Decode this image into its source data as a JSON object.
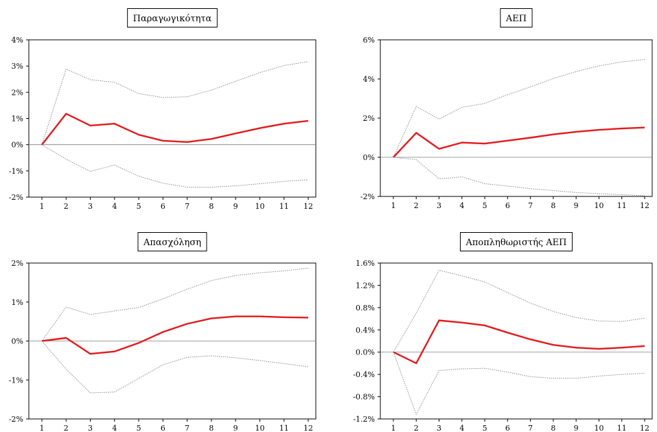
{
  "chart_data": [
    {
      "type": "line",
      "title": "Παραγωγικότητα",
      "x": [
        1,
        2,
        3,
        4,
        5,
        6,
        7,
        8,
        9,
        10,
        11,
        12
      ],
      "y_ticks": [
        "4%",
        "3%",
        "2%",
        "1%",
        "0%",
        "-1%",
        "-2%"
      ],
      "ylim": [
        -2,
        4
      ],
      "series": [
        {
          "role": "upper",
          "style": "dotted",
          "color": "#8c8c8c",
          "values": [
            0.0,
            2.88,
            2.48,
            2.38,
            1.95,
            1.8,
            1.83,
            2.08,
            2.42,
            2.75,
            3.02,
            3.17
          ]
        },
        {
          "role": "estimate",
          "style": "solid",
          "color": "#e31a1c",
          "values": [
            0.0,
            1.18,
            0.73,
            0.8,
            0.38,
            0.15,
            0.1,
            0.22,
            0.43,
            0.63,
            0.8,
            0.91
          ]
        },
        {
          "role": "lower",
          "style": "dotted",
          "color": "#8c8c8c",
          "values": [
            0.0,
            -0.55,
            -1.02,
            -0.78,
            -1.2,
            -1.47,
            -1.62,
            -1.62,
            -1.57,
            -1.49,
            -1.4,
            -1.34
          ]
        }
      ]
    },
    {
      "type": "line",
      "title": "ΑΕΠ",
      "x": [
        1,
        2,
        3,
        4,
        5,
        6,
        7,
        8,
        9,
        10,
        11,
        12
      ],
      "y_ticks": [
        "6%",
        "4%",
        "2%",
        "0%",
        "-2%"
      ],
      "ylim": [
        -2,
        6
      ],
      "series": [
        {
          "role": "upper",
          "style": "dotted",
          "color": "#8c8c8c",
          "values": [
            0.0,
            2.6,
            1.95,
            2.55,
            2.75,
            3.2,
            3.6,
            4.02,
            4.38,
            4.67,
            4.87,
            5.0
          ]
        },
        {
          "role": "estimate",
          "style": "solid",
          "color": "#e31a1c",
          "values": [
            0.0,
            1.25,
            0.43,
            0.75,
            0.7,
            0.85,
            1.0,
            1.17,
            1.3,
            1.4,
            1.47,
            1.52
          ]
        },
        {
          "role": "lower",
          "style": "dotted",
          "color": "#8c8c8c",
          "values": [
            0.0,
            -0.12,
            -1.1,
            -1.0,
            -1.35,
            -1.47,
            -1.6,
            -1.7,
            -1.8,
            -1.86,
            -1.91,
            -1.96
          ]
        }
      ]
    },
    {
      "type": "line",
      "title": "Απασχόληση",
      "x": [
        1,
        2,
        3,
        4,
        5,
        6,
        7,
        8,
        9,
        10,
        11,
        12
      ],
      "y_ticks": [
        "2%",
        "1%",
        "0%",
        "-1%",
        "-2%"
      ],
      "ylim": [
        -2,
        2
      ],
      "series": [
        {
          "role": "upper",
          "style": "dotted",
          "color": "#8c8c8c",
          "values": [
            0.0,
            0.87,
            0.68,
            0.77,
            0.86,
            1.08,
            1.33,
            1.55,
            1.68,
            1.75,
            1.8,
            1.87
          ]
        },
        {
          "role": "estimate",
          "style": "solid",
          "color": "#e31a1c",
          "values": [
            0.0,
            0.08,
            -0.33,
            -0.27,
            -0.05,
            0.23,
            0.44,
            0.58,
            0.63,
            0.63,
            0.61,
            0.6
          ]
        },
        {
          "role": "lower",
          "style": "dotted",
          "color": "#8c8c8c",
          "values": [
            0.0,
            -0.72,
            -1.33,
            -1.31,
            -0.96,
            -0.61,
            -0.42,
            -0.38,
            -0.43,
            -0.5,
            -0.58,
            -0.66
          ]
        }
      ]
    },
    {
      "type": "line",
      "title": "Αποπληθωριστής ΑΕΠ",
      "x": [
        1,
        2,
        3,
        4,
        5,
        6,
        7,
        8,
        9,
        10,
        11,
        12
      ],
      "y_ticks": [
        "1.6%",
        "1.2%",
        "0.8%",
        "0.4%",
        "0.0%",
        "-0.4%",
        "-0.8%",
        "-1.2%"
      ],
      "ylim": [
        -1.2,
        1.6
      ],
      "series": [
        {
          "role": "upper",
          "style": "dotted",
          "color": "#8c8c8c",
          "values": [
            0.0,
            0.7,
            1.47,
            1.37,
            1.26,
            1.07,
            0.88,
            0.73,
            0.62,
            0.56,
            0.55,
            0.61
          ]
        },
        {
          "role": "estimate",
          "style": "solid",
          "color": "#e31a1c",
          "values": [
            0.0,
            -0.2,
            0.57,
            0.53,
            0.48,
            0.35,
            0.23,
            0.13,
            0.08,
            0.06,
            0.08,
            0.11
          ]
        },
        {
          "role": "lower",
          "style": "dotted",
          "color": "#8c8c8c",
          "values": [
            0.0,
            -1.12,
            -0.33,
            -0.3,
            -0.29,
            -0.36,
            -0.44,
            -0.47,
            -0.47,
            -0.43,
            -0.4,
            -0.38
          ]
        }
      ]
    }
  ]
}
